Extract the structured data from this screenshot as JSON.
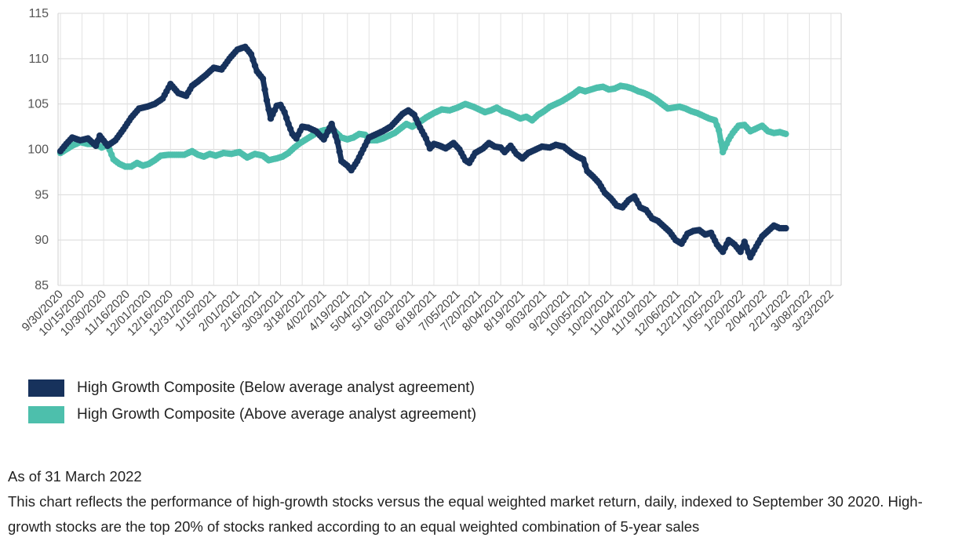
{
  "chart_data": {
    "type": "line",
    "ylim": [
      85,
      115
    ],
    "yticks": [
      85,
      90,
      95,
      100,
      105,
      110,
      115
    ],
    "grid": true,
    "legend_position": "bottom-left",
    "x_tick_labels": [
      "9/30/2020",
      "10/15/2020",
      "10/30/2020",
      "11/16/2020",
      "12/01/2020",
      "12/16/2020",
      "12/31/2020",
      "1/15/2021",
      "2/01/2021",
      "2/16/2021",
      "3/03/2021",
      "3/18/2021",
      "4/02/2021",
      "4/19/2021",
      "5/04/2021",
      "5/19/2021",
      "6/03/2021",
      "6/18/2021",
      "7/05/2021",
      "7/20/2021",
      "8/04/2021",
      "8/19/2021",
      "9/03/2021",
      "9/20/2021",
      "10/05/2021",
      "10/20/2021",
      "11/04/2021",
      "11/19/2021",
      "12/06/2021",
      "12/21/2021",
      "1/05/2022",
      "1/20/2022",
      "2/04/2022",
      "2/21/2022",
      "3/08/2022",
      "3/23/2022"
    ],
    "x_tick_positions": [
      0,
      11,
      22,
      34,
      45,
      56,
      67,
      78,
      90,
      101,
      112,
      123,
      134,
      146,
      157,
      168,
      179,
      190,
      202,
      213,
      224,
      235,
      246,
      258,
      269,
      280,
      291,
      302,
      314,
      325,
      336,
      347,
      358,
      370,
      381,
      392
    ],
    "x_count": 397,
    "series": [
      {
        "name": "High Growth Composite (Below average analyst agreement)",
        "color": "#17325c",
        "points": [
          [
            0,
            99.8
          ],
          [
            3,
            100.6
          ],
          [
            6,
            101.3
          ],
          [
            10,
            101.0
          ],
          [
            14,
            101.2
          ],
          [
            18,
            100.4
          ],
          [
            20,
            101.5
          ],
          [
            24,
            100.4
          ],
          [
            28,
            101.0
          ],
          [
            32,
            102.2
          ],
          [
            36,
            103.5
          ],
          [
            40,
            104.5
          ],
          [
            44,
            104.7
          ],
          [
            48,
            105.0
          ],
          [
            52,
            105.6
          ],
          [
            56,
            107.2
          ],
          [
            60,
            106.2
          ],
          [
            64,
            105.9
          ],
          [
            67,
            107.0
          ],
          [
            70,
            107.5
          ],
          [
            74,
            108.2
          ],
          [
            78,
            109.0
          ],
          [
            82,
            108.8
          ],
          [
            86,
            110.0
          ],
          [
            90,
            111.0
          ],
          [
            94,
            111.3
          ],
          [
            97,
            110.5
          ],
          [
            100,
            108.6
          ],
          [
            103,
            107.8
          ],
          [
            105,
            105.4
          ],
          [
            107,
            103.4
          ],
          [
            110,
            104.8
          ],
          [
            112,
            104.9
          ],
          [
            114,
            104.1
          ],
          [
            116,
            102.8
          ],
          [
            118,
            101.7
          ],
          [
            120,
            101.2
          ],
          [
            123,
            102.5
          ],
          [
            126,
            102.4
          ],
          [
            130,
            102.0
          ],
          [
            134,
            101.1
          ],
          [
            138,
            102.8
          ],
          [
            141,
            100.8
          ],
          [
            143,
            98.7
          ],
          [
            146,
            98.2
          ],
          [
            148,
            97.7
          ],
          [
            151,
            98.7
          ],
          [
            154,
            100.0
          ],
          [
            157,
            101.3
          ],
          [
            160,
            101.6
          ],
          [
            164,
            102.0
          ],
          [
            168,
            102.5
          ],
          [
            171,
            103.2
          ],
          [
            174,
            103.9
          ],
          [
            177,
            104.3
          ],
          [
            180,
            103.8
          ],
          [
            183,
            102.4
          ],
          [
            186,
            101.2
          ],
          [
            188,
            100.1
          ],
          [
            190,
            100.6
          ],
          [
            193,
            100.4
          ],
          [
            196,
            100.1
          ],
          [
            200,
            100.7
          ],
          [
            203,
            100.0
          ],
          [
            206,
            98.8
          ],
          [
            208,
            98.5
          ],
          [
            211,
            99.6
          ],
          [
            215,
            100.1
          ],
          [
            218,
            100.7
          ],
          [
            221,
            100.3
          ],
          [
            224,
            100.2
          ],
          [
            226,
            99.7
          ],
          [
            229,
            100.4
          ],
          [
            232,
            99.5
          ],
          [
            235,
            99.0
          ],
          [
            238,
            99.6
          ],
          [
            242,
            100.0
          ],
          [
            245,
            100.3
          ],
          [
            249,
            100.2
          ],
          [
            252,
            100.5
          ],
          [
            256,
            100.3
          ],
          [
            260,
            99.6
          ],
          [
            263,
            99.2
          ],
          [
            266,
            98.9
          ],
          [
            268,
            97.6
          ],
          [
            271,
            97.0
          ],
          [
            274,
            96.3
          ],
          [
            277,
            95.2
          ],
          [
            280,
            94.6
          ],
          [
            283,
            93.8
          ],
          [
            286,
            93.6
          ],
          [
            289,
            94.4
          ],
          [
            292,
            94.8
          ],
          [
            295,
            93.6
          ],
          [
            298,
            93.3
          ],
          [
            301,
            92.4
          ],
          [
            304,
            92.1
          ],
          [
            307,
            91.5
          ],
          [
            310,
            90.9
          ],
          [
            313,
            90.0
          ],
          [
            316,
            89.6
          ],
          [
            319,
            90.7
          ],
          [
            322,
            91.0
          ],
          [
            325,
            91.1
          ],
          [
            328,
            90.6
          ],
          [
            331,
            90.8
          ],
          [
            334,
            89.5
          ],
          [
            337,
            88.7
          ],
          [
            340,
            90.0
          ],
          [
            343,
            89.5
          ],
          [
            346,
            88.7
          ],
          [
            348,
            89.8
          ],
          [
            351,
            88.1
          ],
          [
            354,
            89.3
          ],
          [
            357,
            90.4
          ],
          [
            360,
            91.0
          ],
          [
            363,
            91.6
          ],
          [
            366,
            91.3
          ],
          [
            369,
            91.3
          ]
        ]
      },
      {
        "name": "High Growth Composite (Above average analyst agreement)",
        "color": "#4dbfac",
        "points": [
          [
            0,
            99.6
          ],
          [
            3,
            100.0
          ],
          [
            6,
            100.4
          ],
          [
            10,
            100.8
          ],
          [
            14,
            100.6
          ],
          [
            18,
            100.6
          ],
          [
            21,
            100.2
          ],
          [
            24,
            100.5
          ],
          [
            27,
            98.9
          ],
          [
            30,
            98.4
          ],
          [
            33,
            98.1
          ],
          [
            36,
            98.1
          ],
          [
            39,
            98.5
          ],
          [
            42,
            98.2
          ],
          [
            45,
            98.4
          ],
          [
            48,
            98.8
          ],
          [
            51,
            99.3
          ],
          [
            55,
            99.4
          ],
          [
            59,
            99.4
          ],
          [
            63,
            99.4
          ],
          [
            67,
            99.8
          ],
          [
            70,
            99.4
          ],
          [
            73,
            99.2
          ],
          [
            76,
            99.5
          ],
          [
            79,
            99.3
          ],
          [
            83,
            99.6
          ],
          [
            87,
            99.5
          ],
          [
            91,
            99.7
          ],
          [
            95,
            99.1
          ],
          [
            99,
            99.5
          ],
          [
            103,
            99.3
          ],
          [
            106,
            98.8
          ],
          [
            110,
            99.0
          ],
          [
            113,
            99.2
          ],
          [
            116,
            99.6
          ],
          [
            119,
            100.2
          ],
          [
            122,
            100.7
          ],
          [
            125,
            101.1
          ],
          [
            128,
            101.5
          ],
          [
            131,
            101.9
          ],
          [
            134,
            102.1
          ],
          [
            137,
            102.2
          ],
          [
            140,
            101.9
          ],
          [
            143,
            101.3
          ],
          [
            146,
            101.1
          ],
          [
            149,
            101.3
          ],
          [
            152,
            101.7
          ],
          [
            155,
            101.6
          ],
          [
            158,
            101.0
          ],
          [
            161,
            101.0
          ],
          [
            164,
            101.2
          ],
          [
            167,
            101.5
          ],
          [
            170,
            101.8
          ],
          [
            173,
            102.3
          ],
          [
            176,
            102.8
          ],
          [
            179,
            102.5
          ],
          [
            182,
            102.9
          ],
          [
            186,
            103.5
          ],
          [
            190,
            104.0
          ],
          [
            194,
            104.4
          ],
          [
            198,
            104.3
          ],
          [
            202,
            104.6
          ],
          [
            206,
            105.0
          ],
          [
            210,
            104.7
          ],
          [
            213,
            104.4
          ],
          [
            216,
            104.1
          ],
          [
            219,
            104.3
          ],
          [
            222,
            104.6
          ],
          [
            225,
            104.2
          ],
          [
            228,
            104.0
          ],
          [
            231,
            103.7
          ],
          [
            234,
            103.4
          ],
          [
            237,
            103.6
          ],
          [
            240,
            103.2
          ],
          [
            243,
            103.8
          ],
          [
            246,
            104.2
          ],
          [
            249,
            104.7
          ],
          [
            252,
            105.0
          ],
          [
            255,
            105.3
          ],
          [
            258,
            105.7
          ],
          [
            261,
            106.1
          ],
          [
            264,
            106.6
          ],
          [
            267,
            106.4
          ],
          [
            270,
            106.6
          ],
          [
            273,
            106.8
          ],
          [
            276,
            106.9
          ],
          [
            279,
            106.6
          ],
          [
            282,
            106.7
          ],
          [
            285,
            107.0
          ],
          [
            288,
            106.9
          ],
          [
            291,
            106.7
          ],
          [
            294,
            106.4
          ],
          [
            297,
            106.2
          ],
          [
            300,
            105.9
          ],
          [
            303,
            105.5
          ],
          [
            306,
            105.0
          ],
          [
            309,
            104.5
          ],
          [
            312,
            104.6
          ],
          [
            315,
            104.7
          ],
          [
            318,
            104.5
          ],
          [
            321,
            104.2
          ],
          [
            324,
            104.0
          ],
          [
            327,
            103.7
          ],
          [
            330,
            103.4
          ],
          [
            333,
            103.2
          ],
          [
            335,
            102.1
          ],
          [
            337,
            99.7
          ],
          [
            340,
            101.1
          ],
          [
            342,
            101.8
          ],
          [
            345,
            102.6
          ],
          [
            348,
            102.7
          ],
          [
            351,
            102.0
          ],
          [
            354,
            102.3
          ],
          [
            357,
            102.6
          ],
          [
            360,
            102.0
          ],
          [
            363,
            101.8
          ],
          [
            366,
            101.9
          ],
          [
            369,
            101.7
          ]
        ]
      }
    ]
  },
  "legend": {
    "items": [
      {
        "label": "High Growth Composite (Below average analyst agreement)",
        "color": "#17325c"
      },
      {
        "label": "High Growth Composite (Above average analyst agreement)",
        "color": "#4dbfac"
      }
    ]
  },
  "footnote": {
    "as_of": "As of 31 March 2022",
    "description": "This chart reflects the performance of high-growth stocks versus the equal weighted market return, daily, indexed to September 30 2020. High-growth stocks are the top 20% of stocks ranked according to an equal weighted combination of 5-year sales"
  }
}
